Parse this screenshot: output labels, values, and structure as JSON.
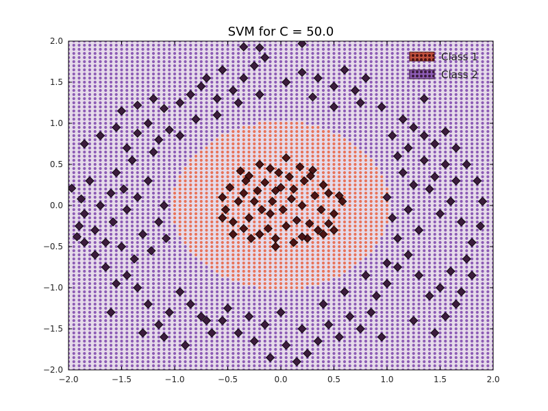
{
  "chart_data": {
    "type": "scatter",
    "title": "SVM for C = 50.0",
    "xlabel": "",
    "ylabel": "",
    "xlim": [
      -2.0,
      2.0
    ],
    "ylim": [
      -2.0,
      2.0
    ],
    "x_ticks": [
      "−2.0",
      "−1.5",
      "−1.0",
      "−0.5",
      "0.0",
      "0.5",
      "1.0",
      "1.5",
      "2.0"
    ],
    "y_ticks": [
      "−2.0",
      "−1.5",
      "−1.0",
      "−0.5",
      "0.0",
      "0.5",
      "1.0",
      "1.5",
      "2.0"
    ],
    "grid": false,
    "legend_position": "top-right",
    "background": {
      "description_values": "decision-region mesh of dots over [-2,2]x[-2,2]",
      "class1_region": {
        "shape": "circle",
        "center": [
          0.0,
          0.0
        ],
        "radius": 1.02
      },
      "mesh_step": 0.05
    },
    "series": [
      {
        "name": "Class 1",
        "color": "#e8735a",
        "marker_color": "#4a1414",
        "points": [
          [
            -0.38,
            0.42
          ],
          [
            -0.3,
            0.36
          ],
          [
            -0.2,
            0.5
          ],
          [
            -0.1,
            0.45
          ],
          [
            0.05,
            0.58
          ],
          [
            0.18,
            0.47
          ],
          [
            0.3,
            0.43
          ],
          [
            0.4,
            0.25
          ],
          [
            0.55,
            0.12
          ],
          [
            0.58,
            0.05
          ],
          [
            0.5,
            -0.1
          ],
          [
            0.45,
            -0.22
          ],
          [
            0.35,
            -0.3
          ],
          [
            0.25,
            -0.4
          ],
          [
            0.12,
            -0.45
          ],
          [
            -0.05,
            -0.4
          ],
          [
            -0.2,
            -0.35
          ],
          [
            -0.35,
            -0.28
          ],
          [
            -0.45,
            -0.2
          ],
          [
            -0.52,
            -0.05
          ],
          [
            -0.55,
            0.1
          ],
          [
            -0.48,
            0.22
          ],
          [
            -0.05,
            0.18
          ],
          [
            0.0,
            0.22
          ],
          [
            0.1,
            0.08
          ],
          [
            0.2,
            0.0
          ],
          [
            -0.1,
            -0.1
          ],
          [
            -0.25,
            0.05
          ],
          [
            -0.15,
            0.28
          ],
          [
            0.22,
            0.3
          ],
          [
            0.38,
            -0.05
          ],
          [
            -0.3,
            -0.15
          ],
          [
            0.05,
            -0.25
          ],
          [
            -0.4,
            0.05
          ],
          [
            0.15,
            -0.18
          ],
          [
            -0.22,
            0.18
          ],
          [
            0.32,
            0.12
          ],
          [
            -0.02,
            0.4
          ],
          [
            0.27,
            -0.22
          ],
          [
            -0.12,
            -0.28
          ],
          [
            -0.33,
            0.3
          ],
          [
            0.45,
            0.15
          ],
          [
            0.02,
            -0.05
          ],
          [
            -0.08,
            0.05
          ],
          [
            0.12,
            0.2
          ],
          [
            -0.28,
            -0.4
          ],
          [
            0.4,
            -0.35
          ],
          [
            -0.45,
            -0.35
          ],
          [
            0.5,
            -0.3
          ],
          [
            -0.55,
            -0.15
          ],
          [
            0.28,
            0.36
          ],
          [
            -0.18,
            -0.05
          ],
          [
            0.08,
            0.35
          ],
          [
            -0.35,
            0.15
          ],
          [
            0.2,
            -0.38
          ],
          [
            -0.05,
            -0.5
          ]
        ]
      },
      {
        "name": "Class 2",
        "color": "#8d5cb5",
        "marker_color": "#3b1c3c",
        "points": [
          [
            -1.97,
            0.21
          ],
          [
            -1.92,
            -0.38
          ],
          [
            -1.88,
            0.08
          ],
          [
            -1.85,
            -0.1
          ],
          [
            -1.8,
            0.3
          ],
          [
            -1.75,
            -0.3
          ],
          [
            -1.7,
            0.0
          ],
          [
            -1.65,
            -0.45
          ],
          [
            -1.6,
            0.15
          ],
          [
            -1.58,
            -0.2
          ],
          [
            -1.55,
            0.4
          ],
          [
            -1.5,
            -0.5
          ],
          [
            -1.48,
            0.2
          ],
          [
            -1.45,
            -0.05
          ],
          [
            -1.4,
            0.55
          ],
          [
            -1.38,
            -0.65
          ],
          [
            -1.35,
            0.1
          ],
          [
            -1.3,
            -0.35
          ],
          [
            -1.25,
            0.3
          ],
          [
            -1.22,
            -0.55
          ],
          [
            -1.2,
            0.65
          ],
          [
            -1.15,
            -0.2
          ],
          [
            -1.1,
            0.0
          ],
          [
            -1.08,
            -0.4
          ],
          [
            -1.85,
            0.75
          ],
          [
            -1.7,
            0.85
          ],
          [
            -1.55,
            0.95
          ],
          [
            -1.45,
            0.7
          ],
          [
            -1.35,
            0.88
          ],
          [
            -1.25,
            1.0
          ],
          [
            -1.15,
            0.8
          ],
          [
            -1.05,
            0.92
          ],
          [
            -0.95,
            0.85
          ],
          [
            -1.5,
            1.15
          ],
          [
            -1.35,
            1.22
          ],
          [
            -1.2,
            1.3
          ],
          [
            -1.1,
            1.18
          ],
          [
            -0.95,
            1.25
          ],
          [
            -0.85,
            1.35
          ],
          [
            -0.75,
            1.45
          ],
          [
            -0.6,
            1.3
          ],
          [
            -0.45,
            1.4
          ],
          [
            -0.35,
            1.55
          ],
          [
            -0.25,
            1.7
          ],
          [
            -0.15,
            1.8
          ],
          [
            -0.35,
            1.93
          ],
          [
            -0.2,
            1.92
          ],
          [
            0.2,
            1.97
          ],
          [
            -0.55,
            1.65
          ],
          [
            -0.7,
            1.55
          ],
          [
            -0.4,
            1.25
          ],
          [
            -0.2,
            1.35
          ],
          [
            0.05,
            1.5
          ],
          [
            0.2,
            1.62
          ],
          [
            0.35,
            1.55
          ],
          [
            0.5,
            1.45
          ],
          [
            0.6,
            1.65
          ],
          [
            0.7,
            1.4
          ],
          [
            0.8,
            1.55
          ],
          [
            0.75,
            1.25
          ],
          [
            0.5,
            1.2
          ],
          [
            0.3,
            1.32
          ],
          [
            0.95,
            1.2
          ],
          [
            1.05,
            0.85
          ],
          [
            1.15,
            1.05
          ],
          [
            1.25,
            0.95
          ],
          [
            1.35,
            0.85
          ],
          [
            1.45,
            0.75
          ],
          [
            1.55,
            0.9
          ],
          [
            1.65,
            0.7
          ],
          [
            1.75,
            0.5
          ],
          [
            1.85,
            0.3
          ],
          [
            1.9,
            0.05
          ],
          [
            1.88,
            -0.25
          ],
          [
            1.8,
            -0.45
          ],
          [
            1.7,
            -0.2
          ],
          [
            1.6,
            0.05
          ],
          [
            1.5,
            -0.1
          ],
          [
            1.4,
            0.2
          ],
          [
            1.3,
            -0.3
          ],
          [
            1.25,
            0.25
          ],
          [
            1.2,
            -0.05
          ],
          [
            1.15,
            0.4
          ],
          [
            1.1,
            -0.4
          ],
          [
            1.05,
            -0.15
          ],
          [
            1.0,
            0.1
          ],
          [
            1.1,
            0.6
          ],
          [
            1.2,
            0.7
          ],
          [
            1.35,
            0.55
          ],
          [
            1.45,
            0.35
          ],
          [
            1.55,
            0.5
          ],
          [
            1.65,
            0.3
          ],
          [
            1.75,
            -0.65
          ],
          [
            1.6,
            -0.8
          ],
          [
            1.5,
            -1.0
          ],
          [
            1.4,
            -1.1
          ],
          [
            1.3,
            -0.85
          ],
          [
            1.2,
            -0.6
          ],
          [
            1.1,
            -0.75
          ],
          [
            1.0,
            -0.95
          ],
          [
            0.9,
            -1.1
          ],
          [
            0.85,
            -1.3
          ],
          [
            0.75,
            -1.5
          ],
          [
            0.65,
            -1.35
          ],
          [
            0.55,
            -1.6
          ],
          [
            0.45,
            -1.45
          ],
          [
            0.35,
            -1.65
          ],
          [
            0.25,
            -1.8
          ],
          [
            0.15,
            -1.9
          ],
          [
            0.05,
            -1.7
          ],
          [
            -0.1,
            -1.85
          ],
          [
            -0.25,
            -1.65
          ],
          [
            -0.4,
            -1.55
          ],
          [
            -0.55,
            -1.4
          ],
          [
            -0.65,
            -1.55
          ],
          [
            -0.75,
            -1.35
          ],
          [
            -0.85,
            -1.2
          ],
          [
            -0.95,
            -1.05
          ],
          [
            -1.05,
            -1.3
          ],
          [
            -1.15,
            -1.45
          ],
          [
            -1.25,
            -1.2
          ],
          [
            -1.35,
            -1.0
          ],
          [
            -1.45,
            -0.85
          ],
          [
            -1.55,
            -0.95
          ],
          [
            -1.65,
            -0.75
          ],
          [
            -1.75,
            -0.6
          ],
          [
            -1.85,
            -0.45
          ],
          [
            -1.3,
            -1.55
          ],
          [
            -1.1,
            -1.6
          ],
          [
            -0.9,
            -1.7
          ],
          [
            -0.7,
            -1.4
          ],
          [
            -0.5,
            -1.25
          ],
          [
            -0.3,
            -1.35
          ],
          [
            -0.15,
            -1.45
          ],
          [
            0.0,
            -1.3
          ],
          [
            0.2,
            -1.5
          ],
          [
            0.4,
            -1.2
          ],
          [
            0.6,
            -1.05
          ],
          [
            0.8,
            -0.85
          ],
          [
            1.0,
            -0.7
          ],
          [
            1.55,
            -1.35
          ],
          [
            1.65,
            -1.2
          ],
          [
            1.45,
            -1.55
          ],
          [
            1.25,
            -1.4
          ],
          [
            0.95,
            -1.6
          ],
          [
            1.7,
            -1.05
          ],
          [
            1.8,
            -0.85
          ],
          [
            -1.9,
            -0.25
          ],
          [
            -0.8,
            1.05
          ],
          [
            -0.6,
            1.1
          ],
          [
            -1.6,
            -1.3
          ],
          [
            1.35,
            1.3
          ]
        ]
      }
    ]
  }
}
